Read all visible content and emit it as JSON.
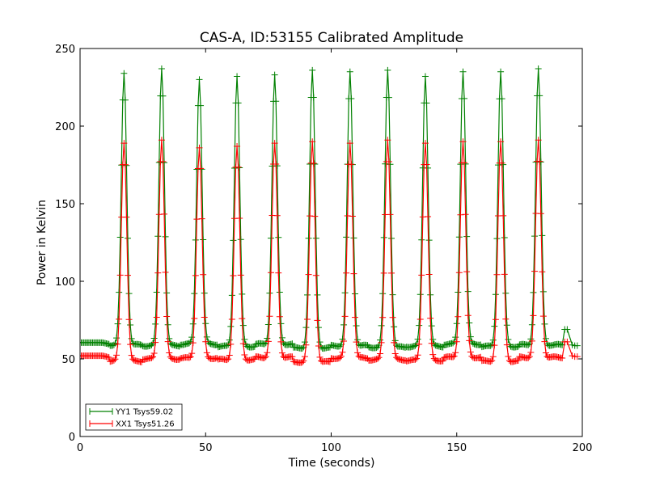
{
  "chart_data": {
    "type": "line",
    "title": "CAS-A, ID:53155 Calibrated Amplitude",
    "xlabel": "Time (seconds)",
    "ylabel": "Power in Kelvin",
    "xlim": [
      0,
      200
    ],
    "ylim": [
      0,
      250
    ],
    "xticks": [
      0,
      50,
      100,
      150,
      200
    ],
    "yticks": [
      0,
      50,
      100,
      150,
      200,
      250
    ],
    "grid": false,
    "legend_position": "lower-left",
    "series": [
      {
        "name": "YY1 Tsys59.02",
        "color": "#008000",
        "marker": "+",
        "baseline": 59.02,
        "peak_times": [
          17.5,
          32.5,
          47.5,
          62.5,
          77.5,
          92.5,
          107.5,
          122.5,
          137.5,
          152.5,
          167.5,
          182.5
        ],
        "peak_values": [
          234,
          237,
          230,
          232,
          233,
          236,
          235,
          236,
          232,
          235,
          235,
          237
        ],
        "segment_levels": [
          58,
          59,
          58.5,
          59.5,
          58,
          59.5,
          57,
          58.5,
          57.5,
          58,
          59.5,
          58,
          59
        ],
        "initial_level": 60.5,
        "tail_points": [
          [
            193,
            69
          ],
          [
            194,
            69
          ],
          [
            196,
            59
          ],
          [
            197,
            58.5
          ],
          [
            198,
            58.5
          ]
        ]
      },
      {
        "name": "XX1 Tsys51.26",
        "color": "#ff0000",
        "marker": "+",
        "baseline": 51.26,
        "peak_times": [
          17.5,
          32.5,
          47.5,
          62.5,
          77.5,
          92.5,
          107.5,
          122.5,
          137.5,
          152.5,
          167.5,
          182.5
        ],
        "peak_values": [
          189,
          191,
          186,
          187,
          189,
          190,
          189,
          191,
          189,
          190,
          190,
          191
        ],
        "segment_levels": [
          51,
          48.5,
          50,
          50.5,
          49.5,
          51,
          48,
          50.5,
          49.5,
          49,
          51,
          48.5,
          51
        ],
        "initial_level": 52,
        "tail_points": [
          [
            193,
            61
          ],
          [
            194,
            61
          ],
          [
            196,
            52
          ],
          [
            197,
            51.5
          ],
          [
            198,
            51.5
          ]
        ]
      }
    ]
  }
}
